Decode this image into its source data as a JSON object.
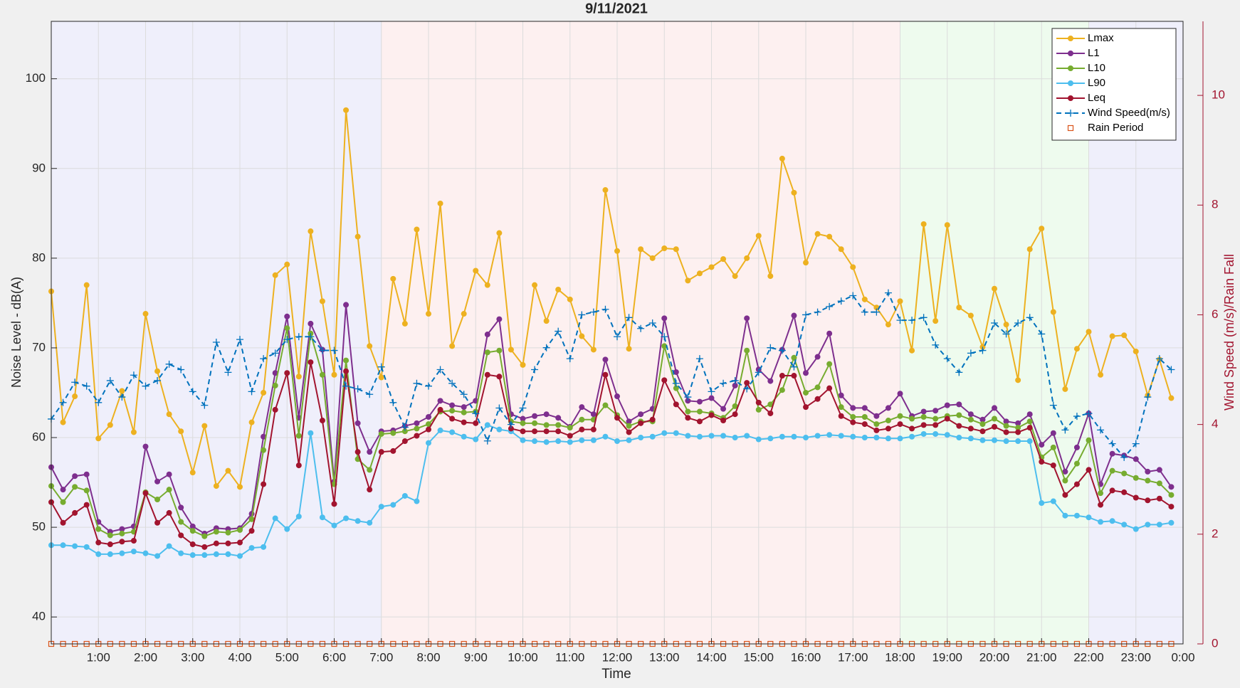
{
  "chart_data": {
    "type": "line",
    "title": "9/11/2021",
    "xlabel": "Time",
    "ylabel": "Noise Level - dB(A)",
    "y2label": "Wind Speed (m/s)/Rain Fall",
    "xlim": [
      0,
      24
    ],
    "ylim": [
      37,
      106.4
    ],
    "y2lim": [
      0,
      11.35
    ],
    "grid": true,
    "legend": "upper right",
    "xticks": [
      {
        "value": 1,
        "label": "1:00"
      },
      {
        "value": 2,
        "label": "2:00"
      },
      {
        "value": 3,
        "label": "3:00"
      },
      {
        "value": 4,
        "label": "4:00"
      },
      {
        "value": 5,
        "label": "5:00"
      },
      {
        "value": 6,
        "label": "6:00"
      },
      {
        "value": 7,
        "label": "7:00"
      },
      {
        "value": 8,
        "label": "8:00"
      },
      {
        "value": 9,
        "label": "9:00"
      },
      {
        "value": 10,
        "label": "10:00"
      },
      {
        "value": 11,
        "label": "11:00"
      },
      {
        "value": 12,
        "label": "12:00"
      },
      {
        "value": 13,
        "label": "13:00"
      },
      {
        "value": 14,
        "label": "14:00"
      },
      {
        "value": 15,
        "label": "15:00"
      },
      {
        "value": 16,
        "label": "16:00"
      },
      {
        "value": 17,
        "label": "17:00"
      },
      {
        "value": 18,
        "label": "18:00"
      },
      {
        "value": 19,
        "label": "19:00"
      },
      {
        "value": 20,
        "label": "20:00"
      },
      {
        "value": 21,
        "label": "21:00"
      },
      {
        "value": 22,
        "label": "22:00"
      },
      {
        "value": 23,
        "label": "23:00"
      },
      {
        "value": 24,
        "label": "0:00"
      }
    ],
    "yticks": [
      40,
      50,
      60,
      70,
      80,
      90,
      100
    ],
    "y2ticks": [
      0,
      2,
      4,
      6,
      8,
      10
    ],
    "x": [
      0,
      0.25,
      0.5,
      0.75,
      1,
      1.25,
      1.5,
      1.75,
      2,
      2.25,
      2.5,
      2.75,
      3,
      3.25,
      3.5,
      3.75,
      4,
      4.25,
      4.5,
      4.75,
      5,
      5.25,
      5.5,
      5.75,
      6,
      6.25,
      6.5,
      6.75,
      7,
      7.25,
      7.5,
      7.75,
      8,
      8.25,
      8.5,
      8.75,
      9,
      9.25,
      9.5,
      9.75,
      10,
      10.25,
      10.5,
      10.75,
      11,
      11.25,
      11.5,
      11.75,
      12,
      12.25,
      12.5,
      12.75,
      13,
      13.25,
      13.5,
      13.75,
      14,
      14.25,
      14.5,
      14.75,
      15,
      15.25,
      15.5,
      15.75,
      16,
      16.25,
      16.5,
      16.75,
      17,
      17.25,
      17.5,
      17.75,
      18,
      18.25,
      18.5,
      18.75,
      19,
      19.25,
      19.5,
      19.75,
      20,
      20.25,
      20.5,
      20.75,
      21,
      21.25,
      21.5,
      21.75,
      22,
      22.25,
      22.5,
      22.75,
      23,
      23.25,
      23.5,
      23.75
    ],
    "series": [
      {
        "name": "Lmax",
        "color": "#EDB120",
        "marker": "o",
        "linestyle": "solid",
        "values": [
          76.3,
          61.7,
          64.6,
          77,
          59.9,
          61.4,
          65.2,
          60.6,
          73.8,
          67.4,
          62.6,
          60.7,
          56.1,
          61.3,
          54.6,
          56.3,
          54.5,
          61.7,
          65,
          78.1,
          79.3,
          66.8,
          83,
          75.2,
          67,
          96.5,
          82.4,
          70.2,
          66.7,
          77.7,
          72.7,
          83.2,
          73.8,
          86.1,
          70.2,
          73.8,
          78.6,
          77,
          82.8,
          69.8,
          68.1,
          77,
          73,
          76.5,
          75.4,
          71.3,
          69.8,
          87.6,
          80.8,
          69.9,
          81,
          80,
          81.1,
          81,
          77.5,
          78.3,
          79,
          79.9,
          78,
          80,
          82.5,
          78,
          91.1,
          87.3,
          79.5,
          82.7,
          82.4,
          81,
          79,
          75.4,
          74.5,
          72.6,
          75.2,
          69.7,
          83.8,
          73,
          83.7,
          74.5,
          73.6,
          70.1,
          76.6,
          72.6,
          66.4,
          81,
          83.3,
          74,
          65.4,
          69.9,
          71.8,
          67,
          71.3,
          71.4,
          69.6,
          64.7,
          68.7,
          64.4
        ]
      },
      {
        "name": "L1",
        "color": "#7E2F8E",
        "marker": "o",
        "linestyle": "solid",
        "values": [
          56.7,
          54.2,
          55.7,
          55.9,
          50.6,
          49.5,
          49.8,
          50.1,
          59,
          55.1,
          55.9,
          52.2,
          50.1,
          49.3,
          49.9,
          49.8,
          49.9,
          51.5,
          60.1,
          67.2,
          73.5,
          62.2,
          72.7,
          69.8,
          55.1,
          74.8,
          61.6,
          58.4,
          60.7,
          60.8,
          61.3,
          61.6,
          62.3,
          64.1,
          63.6,
          63.4,
          64.1,
          71.5,
          73.2,
          62.6,
          62.1,
          62.4,
          62.6,
          62.2,
          61.2,
          63.4,
          62.6,
          68.7,
          64.6,
          61.8,
          62.6,
          63.2,
          73.3,
          67.3,
          64.1,
          64,
          64.4,
          63.2,
          65.8,
          73.3,
          67.6,
          66.3,
          69.8,
          73.6,
          67.2,
          69,
          71.6,
          64.7,
          63.3,
          63.3,
          62.4,
          63.3,
          64.9,
          62.4,
          62.9,
          63,
          63.6,
          63.7,
          62.6,
          62,
          63.3,
          61.8,
          61.6,
          62.6,
          59.2,
          60.5,
          56.2,
          58.9,
          62.7,
          54.8,
          58.2,
          58,
          57.6,
          56.2,
          56.4,
          54.5
        ]
      },
      {
        "name": "L10",
        "color": "#77AC30",
        "marker": "o",
        "linestyle": "solid",
        "values": [
          54.6,
          52.8,
          54.5,
          54.1,
          49.8,
          49.1,
          49.3,
          49.5,
          53.9,
          53.1,
          54.2,
          50.6,
          49.6,
          49,
          49.5,
          49.4,
          49.7,
          50.9,
          58.6,
          65.8,
          72.2,
          60.2,
          71.6,
          67,
          54.8,
          68.6,
          57.6,
          56.4,
          60.4,
          60.5,
          60.7,
          61,
          61.5,
          62.9,
          63,
          62.8,
          62.9,
          69.5,
          69.7,
          61.8,
          61.6,
          61.6,
          61.4,
          61.4,
          61.1,
          62,
          62,
          63.6,
          62.5,
          61.3,
          61.8,
          61.8,
          70.2,
          65.5,
          62.9,
          62.9,
          62.7,
          62.2,
          63.5,
          69.7,
          63.1,
          63.7,
          65.3,
          68.9,
          65,
          65.6,
          68.2,
          63.4,
          62.3,
          62.3,
          61.5,
          61.9,
          62.4,
          62.1,
          62.3,
          62.1,
          62.4,
          62.5,
          62,
          61.5,
          62.1,
          61.3,
          61.1,
          61.8,
          57.8,
          58.9,
          55.2,
          57.1,
          59.7,
          53.8,
          56.3,
          56,
          55.5,
          55.2,
          54.9,
          53.6
        ]
      },
      {
        "name": "L90",
        "color": "#4DBEEE",
        "marker": "o",
        "linestyle": "solid",
        "values": [
          48,
          48,
          47.9,
          47.8,
          47,
          47,
          47.1,
          47.3,
          47.1,
          46.8,
          47.9,
          47.1,
          46.9,
          46.9,
          47,
          47,
          46.8,
          47.7,
          47.8,
          51,
          49.8,
          51.2,
          60.5,
          51.1,
          50.2,
          51,
          50.7,
          50.5,
          52.3,
          52.5,
          53.5,
          52.9,
          59.4,
          60.8,
          60.6,
          60.1,
          59.8,
          61.4,
          60.9,
          60.7,
          59.7,
          59.6,
          59.5,
          59.6,
          59.5,
          59.7,
          59.7,
          60.1,
          59.6,
          59.7,
          60,
          60.1,
          60.5,
          60.5,
          60.2,
          60.1,
          60.2,
          60.2,
          60,
          60.2,
          59.8,
          59.9,
          60.1,
          60.1,
          60,
          60.2,
          60.3,
          60.2,
          60.1,
          60,
          60,
          59.9,
          59.9,
          60.1,
          60.4,
          60.4,
          60.3,
          60,
          59.9,
          59.7,
          59.7,
          59.6,
          59.6,
          59.6,
          52.7,
          52.9,
          51.3,
          51.3,
          51.1,
          50.6,
          50.7,
          50.3,
          49.8,
          50.3,
          50.3,
          50.5
        ]
      },
      {
        "name": "Leq",
        "color": "#A2142F",
        "marker": "o",
        "linestyle": "solid",
        "values": [
          52.8,
          50.5,
          51.6,
          52.5,
          48.3,
          48.1,
          48.4,
          48.5,
          53.8,
          50.5,
          51.6,
          49.1,
          48.1,
          47.8,
          48.2,
          48.2,
          48.3,
          49.6,
          54.8,
          63.1,
          67.2,
          56.9,
          68.4,
          61.9,
          52.6,
          67.4,
          58.4,
          54.2,
          58.4,
          58.5,
          59.6,
          60.2,
          60.9,
          63.1,
          62.1,
          61.7,
          61.6,
          67,
          66.8,
          61,
          60.7,
          60.7,
          60.7,
          60.7,
          60.2,
          60.9,
          60.9,
          67,
          62.2,
          60.6,
          61.6,
          62,
          66.4,
          63.7,
          62.2,
          61.8,
          62.5,
          61.9,
          62.6,
          66.1,
          63.9,
          62.7,
          66.9,
          66.9,
          63.4,
          64.3,
          65.5,
          62.4,
          61.7,
          61.5,
          60.8,
          61,
          61.5,
          61,
          61.4,
          61.4,
          62.1,
          61.3,
          61,
          60.7,
          61.2,
          60.6,
          60.6,
          61.1,
          57.3,
          56.9,
          53.6,
          54.8,
          56.4,
          52.5,
          54.1,
          53.9,
          53.3,
          53,
          53.2,
          52.3
        ]
      },
      {
        "name": "Wind Speed(m/s)",
        "color": "#0072BD",
        "marker": "+",
        "linestyle": "dashed",
        "axis": "y2",
        "values": [
          4.1,
          4.4,
          4.77,
          4.7,
          4.4,
          4.8,
          4.5,
          4.9,
          4.7,
          4.8,
          5.1,
          5,
          4.6,
          4.35,
          5.5,
          4.95,
          5.55,
          4.6,
          5.2,
          5.3,
          5.55,
          5.6,
          5.6,
          5.35,
          5.35,
          4.7,
          4.65,
          4.55,
          5.05,
          4.4,
          3.95,
          4.75,
          4.7,
          5,
          4.75,
          4.55,
          4.2,
          3.7,
          4.3,
          4,
          4.3,
          5,
          5.4,
          5.7,
          5.2,
          6,
          6.05,
          6.1,
          5.6,
          5.95,
          5.75,
          5.85,
          5.6,
          4.75,
          4.5,
          5.2,
          4.6,
          4.75,
          4.8,
          4.65,
          4.95,
          5.4,
          5.35,
          5.05,
          6,
          6.05,
          6.15,
          6.25,
          6.35,
          6.05,
          6.05,
          6.4,
          5.9,
          5.9,
          5.95,
          5.45,
          5.2,
          4.95,
          5.3,
          5.35,
          5.85,
          5.65,
          5.85,
          5.95,
          5.65,
          4.35,
          3.9,
          4.15,
          4.2,
          3.9,
          3.65,
          3.4,
          3.65,
          4.5,
          5.2,
          5
        ]
      },
      {
        "name": "Rain Period",
        "color": "#D95319",
        "marker": "s",
        "linestyle": "none",
        "axis": "y2",
        "values": [
          0,
          0,
          0,
          0,
          0,
          0,
          0,
          0,
          0,
          0,
          0,
          0,
          0,
          0,
          0,
          0,
          0,
          0,
          0,
          0,
          0,
          0,
          0,
          0,
          0,
          0,
          0,
          0,
          0,
          0,
          0,
          0,
          0,
          0,
          0,
          0,
          0,
          0,
          0,
          0,
          0,
          0,
          0,
          0,
          0,
          0,
          0,
          0,
          0,
          0,
          0,
          0,
          0,
          0,
          0,
          0,
          0,
          0,
          0,
          0,
          0,
          0,
          0,
          0,
          0,
          0,
          0,
          0,
          0,
          0,
          0,
          0,
          0,
          0,
          0,
          0,
          0,
          0,
          0,
          0,
          0,
          0,
          0,
          0,
          0,
          0,
          0,
          0,
          0,
          0,
          0,
          0,
          0,
          0,
          0,
          0
        ]
      }
    ]
  }
}
